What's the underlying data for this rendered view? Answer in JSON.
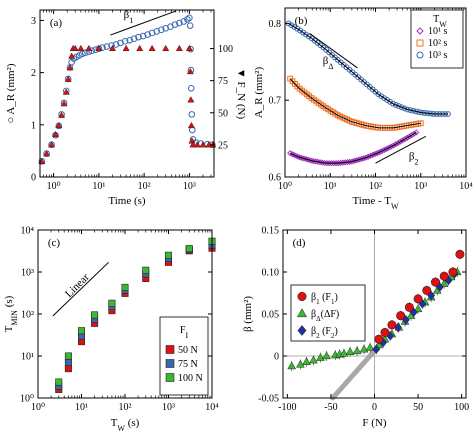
{
  "colors": {
    "blue": "#3a68b0",
    "red": "#e01010",
    "purple": "#a030c0",
    "orange": "#f07020",
    "black": "#111111",
    "green": "#3cb830",
    "navy": "#2030a0",
    "gray": "#999999"
  },
  "chart_data": [
    {
      "id": "a",
      "type": "scatter",
      "panel_label": "(a)",
      "xlabel": "Time (s)",
      "ylabel_left": "A_R (mm²)",
      "ylabel_right": "F_N (N)",
      "xscale": "log",
      "xlim": [
        0.5,
        3500
      ],
      "ylim_left": [
        0,
        3.2
      ],
      "ylim_right": [
        0,
        130
      ],
      "xticks": [
        {
          "v": 1,
          "label": "10⁰"
        },
        {
          "v": 10,
          "label": "10¹"
        },
        {
          "v": 100,
          "label": "10²"
        },
        {
          "v": 1000,
          "label": "10³"
        }
      ],
      "yticks_left": [
        0,
        1,
        2,
        3
      ],
      "yticks_right": [
        25,
        50,
        75,
        100
      ],
      "annotation": "β₁",
      "series": [
        {
          "axis": "left",
          "marker": "open-circle",
          "color": "blue",
          "points": [
            [
              0.55,
              0.3
            ],
            [
              0.7,
              0.45
            ],
            [
              0.9,
              0.62
            ],
            [
              1.1,
              0.8
            ],
            [
              1.3,
              0.98
            ],
            [
              1.5,
              1.2
            ],
            [
              1.7,
              1.42
            ],
            [
              1.9,
              1.65
            ],
            [
              2.1,
              1.88
            ],
            [
              2.3,
              2.1
            ],
            [
              2.5,
              2.2
            ],
            [
              2.8,
              2.27
            ],
            [
              3.2,
              2.3
            ],
            [
              3.7,
              2.33
            ],
            [
              4.3,
              2.36
            ],
            [
              5,
              2.38
            ],
            [
              6,
              2.4
            ],
            [
              7,
              2.42
            ],
            [
              8.5,
              2.44
            ],
            [
              10,
              2.46
            ],
            [
              12,
              2.48
            ],
            [
              15,
              2.5
            ],
            [
              19,
              2.52
            ],
            [
              24,
              2.54
            ],
            [
              30,
              2.57
            ],
            [
              38,
              2.6
            ],
            [
              48,
              2.62
            ],
            [
              60,
              2.65
            ],
            [
              75,
              2.68
            ],
            [
              95,
              2.7
            ],
            [
              120,
              2.73
            ],
            [
              150,
              2.76
            ],
            [
              190,
              2.79
            ],
            [
              240,
              2.82
            ],
            [
              300,
              2.85
            ],
            [
              380,
              2.88
            ],
            [
              480,
              2.92
            ],
            [
              600,
              2.95
            ],
            [
              750,
              2.98
            ],
            [
              900,
              3.02
            ],
            [
              1000,
              3.05
            ],
            [
              1040,
              2.9
            ],
            [
              1060,
              2.45
            ],
            [
              1080,
              2.05
            ],
            [
              1100,
              1.7
            ],
            [
              1130,
              1.2
            ],
            [
              1160,
              0.9
            ],
            [
              1200,
              0.72
            ],
            [
              1400,
              0.66
            ],
            [
              1800,
              0.64
            ],
            [
              2500,
              0.63
            ],
            [
              3200,
              0.62
            ]
          ]
        },
        {
          "axis": "right",
          "marker": "filled-triangle",
          "color": "red",
          "points": [
            [
              0.55,
              12
            ],
            [
              0.7,
              18
            ],
            [
              0.9,
              25
            ],
            [
              1.1,
              33
            ],
            [
              1.3,
              40
            ],
            [
              1.5,
              48
            ],
            [
              1.7,
              57
            ],
            [
              1.9,
              66
            ],
            [
              2.1,
              76
            ],
            [
              2.3,
              85
            ],
            [
              2.5,
              94
            ],
            [
              2.7,
              100
            ],
            [
              3,
              100
            ],
            [
              4,
              100
            ],
            [
              6,
              100
            ],
            [
              10,
              100
            ],
            [
              20,
              100
            ],
            [
              40,
              100
            ],
            [
              80,
              100
            ],
            [
              150,
              100
            ],
            [
              300,
              100
            ],
            [
              600,
              100
            ],
            [
              1000,
              100
            ],
            [
              1050,
              82
            ],
            [
              1080,
              60
            ],
            [
              1110,
              40
            ],
            [
              1140,
              28
            ],
            [
              1200,
              25
            ],
            [
              1500,
              25
            ],
            [
              2000,
              25
            ],
            [
              2700,
              25
            ],
            [
              3300,
              25
            ]
          ]
        }
      ]
    },
    {
      "id": "b",
      "type": "scatter",
      "panel_label": "(b)",
      "xlabel": "Time - T_W",
      "ylabel": "A_R (mm²)",
      "xscale": "log",
      "xlim": [
        1,
        10000
      ],
      "ylim": [
        0.6,
        0.82
      ],
      "xticks": [
        {
          "v": 1,
          "label": "10⁰"
        },
        {
          "v": 10,
          "label": "10¹"
        },
        {
          "v": 100,
          "label": "10²"
        },
        {
          "v": 1000,
          "label": "10³"
        },
        {
          "v": 10000,
          "label": "10⁴"
        }
      ],
      "yticks": [
        0.6,
        0.7,
        0.8
      ],
      "annotations": [
        "β_Δ",
        "β₂"
      ],
      "legend": {
        "title": "T_W",
        "entries": [
          "10¹ s",
          "10² s",
          "10³ s"
        ]
      },
      "series": [
        {
          "name": "10¹ s",
          "marker": "open-diamond",
          "color": "purple",
          "fit": [
            [
              1.3,
              0.631
            ],
            [
              2,
              0.626
            ],
            [
              4,
              0.621
            ],
            [
              8,
              0.618
            ],
            [
              15,
              0.618
            ],
            [
              30,
              0.62
            ],
            [
              60,
              0.625
            ],
            [
              120,
              0.632
            ],
            [
              250,
              0.641
            ],
            [
              500,
              0.651
            ],
            [
              800,
              0.658
            ]
          ]
        },
        {
          "name": "10² s",
          "marker": "open-square",
          "color": "orange",
          "fit": [
            [
              1.3,
              0.728
            ],
            [
              2,
              0.716
            ],
            [
              4,
              0.702
            ],
            [
              8,
              0.69
            ],
            [
              15,
              0.68
            ],
            [
              30,
              0.672
            ],
            [
              60,
              0.667
            ],
            [
              120,
              0.664
            ],
            [
              250,
              0.664
            ],
            [
              500,
              0.667
            ],
            [
              1000,
              0.67
            ]
          ]
        },
        {
          "name": "10³ s",
          "marker": "open-circle",
          "color": "blue",
          "fit": [
            [
              1.2,
              0.8
            ],
            [
              2,
              0.792
            ],
            [
              4,
              0.78
            ],
            [
              8,
              0.766
            ],
            [
              15,
              0.752
            ],
            [
              30,
              0.737
            ],
            [
              60,
              0.722
            ],
            [
              120,
              0.707
            ],
            [
              250,
              0.695
            ],
            [
              500,
              0.688
            ],
            [
              1000,
              0.684
            ],
            [
              2000,
              0.682
            ],
            [
              4000,
              0.682
            ]
          ]
        }
      ]
    },
    {
      "id": "c",
      "type": "scatter",
      "panel_label": "(c)",
      "xlabel": "T_W (s)",
      "ylabel": "T_MIN (s)",
      "xscale": "log",
      "yscale": "log",
      "xlim": [
        1,
        10000
      ],
      "ylim": [
        1,
        10000
      ],
      "xticks": [
        {
          "v": 1,
          "label": "10⁰"
        },
        {
          "v": 10,
          "label": "10¹"
        },
        {
          "v": 100,
          "label": "10²"
        },
        {
          "v": 1000,
          "label": "10³"
        },
        {
          "v": 10000,
          "label": "10⁴"
        }
      ],
      "yticks": [
        {
          "v": 1,
          "label": "10⁰"
        },
        {
          "v": 10,
          "label": "10¹"
        },
        {
          "v": 100,
          "label": "10²"
        },
        {
          "v": 1000,
          "label": "10³"
        },
        {
          "v": 10000,
          "label": "10⁴"
        }
      ],
      "annotation": "Linear",
      "legend": {
        "title": "F_I",
        "entries": [
          "50 N",
          "75 N",
          "100 N"
        ]
      },
      "series": [
        {
          "name": "50 N",
          "marker": "filled-square",
          "color": "red",
          "points": [
            [
              3,
              1.6
            ],
            [
              5,
              5
            ],
            [
              10,
              22
            ],
            [
              20,
              60
            ],
            [
              50,
              120
            ],
            [
              100,
              310
            ],
            [
              300,
              700
            ],
            [
              1000,
              1700
            ],
            [
              3000,
              3200
            ],
            [
              10000,
              3700
            ]
          ]
        },
        {
          "name": "75 N",
          "marker": "filled-square",
          "color": "blue",
          "points": [
            [
              3,
              1.9
            ],
            [
              5,
              7
            ],
            [
              10,
              30
            ],
            [
              20,
              75
            ],
            [
              50,
              150
            ],
            [
              100,
              370
            ],
            [
              300,
              900
            ],
            [
              1000,
              2100
            ],
            [
              3000,
              3400
            ],
            [
              10000,
              4400
            ]
          ]
        },
        {
          "name": "100 N",
          "marker": "filled-square",
          "color": "green",
          "points": [
            [
              3,
              2.4
            ],
            [
              5,
              10
            ],
            [
              10,
              40
            ],
            [
              20,
              95
            ],
            [
              50,
              180
            ],
            [
              100,
              430
            ],
            [
              300,
              1100
            ],
            [
              1000,
              2500
            ],
            [
              3000,
              3600
            ],
            [
              10000,
              5400
            ]
          ]
        }
      ]
    },
    {
      "id": "d",
      "type": "scatter",
      "panel_label": "(d)",
      "xlabel": "F (N)",
      "ylabel": "β (mm²)",
      "xlim": [
        -105,
        105
      ],
      "ylim": [
        -0.05,
        0.15
      ],
      "xticks": [
        -100,
        -50,
        0,
        50,
        100
      ],
      "yticks": [
        -0.05,
        0,
        0.05,
        0.1,
        0.15
      ],
      "legend": {
        "entries": [
          "β₁ (F₁)",
          "β_Δ(ΔF)",
          "β₂ (F₂)"
        ]
      },
      "series": [
        {
          "name": "β₁ (F₁)",
          "marker": "filled-circle",
          "color": "red",
          "points": [
            [
              5,
              0.02
            ],
            [
              12,
              0.028
            ],
            [
              20,
              0.037
            ],
            [
              30,
              0.048
            ],
            [
              40,
              0.058
            ],
            [
              50,
              0.068
            ],
            [
              60,
              0.078
            ],
            [
              70,
              0.088
            ],
            [
              80,
              0.095
            ],
            [
              90,
              0.1
            ],
            [
              98,
              0.121
            ]
          ]
        },
        {
          "name": "β_Δ(ΔF)",
          "marker": "filled-triangle",
          "color": "green",
          "points": [
            [
              -95,
              -0.012
            ],
            [
              -85,
              -0.01
            ],
            [
              -78,
              -0.007
            ],
            [
              -70,
              -0.005
            ],
            [
              -62,
              -0.002
            ],
            [
              -55,
              0
            ],
            [
              -45,
              0.001
            ],
            [
              -40,
              0.002
            ],
            [
              -35,
              0.003
            ],
            [
              -28,
              0.005
            ],
            [
              -20,
              0.006
            ],
            [
              -12,
              0.008
            ],
            [
              -5,
              0.01
            ],
            [
              5,
              0.013
            ],
            [
              12,
              0.02
            ],
            [
              20,
              0.026
            ],
            [
              28,
              0.034
            ],
            [
              35,
              0.041
            ],
            [
              42,
              0.048
            ],
            [
              50,
              0.056
            ],
            [
              58,
              0.064
            ],
            [
              65,
              0.07
            ],
            [
              72,
              0.078
            ],
            [
              80,
              0.086
            ],
            [
              88,
              0.094
            ],
            [
              95,
              0.1
            ]
          ]
        },
        {
          "name": "β₂ (F₂)",
          "marker": "filled-diamond",
          "color": "navy",
          "points": [
            [
              2,
              0.008
            ],
            [
              10,
              0.016
            ],
            [
              18,
              0.024
            ],
            [
              27,
              0.034
            ],
            [
              36,
              0.043
            ],
            [
              45,
              0.052
            ],
            [
              55,
              0.062
            ],
            [
              65,
              0.072
            ],
            [
              75,
              0.082
            ],
            [
              85,
              0.09
            ],
            [
              92,
              0.098
            ]
          ]
        }
      ]
    }
  ]
}
